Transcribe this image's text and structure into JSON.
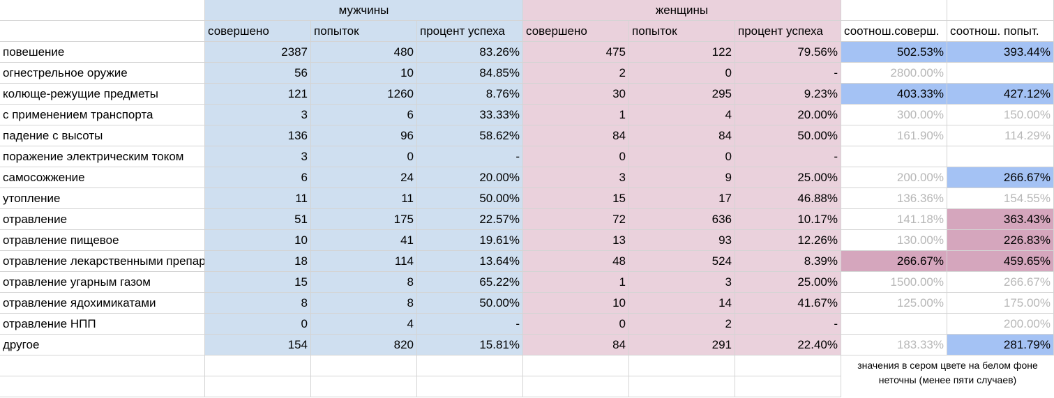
{
  "header_groups": {
    "men": "мужчины",
    "women": "женщины"
  },
  "subheaders": [
    "совершено",
    "попыток",
    "процент успеха",
    "совершено",
    "попыток",
    "процент успеха",
    "соотнош.соверш.",
    "соотнош. попыт."
  ],
  "rows": [
    {
      "label": "повешение",
      "m": [
        "2387",
        "480",
        "83.26%"
      ],
      "w": [
        "475",
        "122",
        "79.56%"
      ],
      "r1": "502.53%",
      "r2": "393.44%",
      "r1s": "blue",
      "r2s": "blue"
    },
    {
      "label": "огнестрельное оружие",
      "m": [
        "56",
        "10",
        "84.85%"
      ],
      "w": [
        "2",
        "0",
        "-"
      ],
      "r1": "2800.00%",
      "r2": "",
      "r1s": "gray",
      "r2s": ""
    },
    {
      "label": "колюще-режущие предметы",
      "m": [
        "121",
        "1260",
        "8.76%"
      ],
      "w": [
        "30",
        "295",
        "9.23%"
      ],
      "r1": "403.33%",
      "r2": "427.12%",
      "r1s": "blue",
      "r2s": "blue"
    },
    {
      "label": "с применением транспорта",
      "m": [
        "3",
        "6",
        "33.33%"
      ],
      "w": [
        "1",
        "4",
        "20.00%"
      ],
      "r1": "300.00%",
      "r2": "150.00%",
      "r1s": "gray",
      "r2s": "gray"
    },
    {
      "label": "падение с высоты",
      "m": [
        "136",
        "96",
        "58.62%"
      ],
      "w": [
        "84",
        "84",
        "50.00%"
      ],
      "r1": "161.90%",
      "r2": "114.29%",
      "r1s": "gray",
      "r2s": "gray"
    },
    {
      "label": "поражение электрическим током",
      "m": [
        "3",
        "0",
        "-"
      ],
      "w": [
        "0",
        "0",
        "-"
      ],
      "r1": "",
      "r2": "",
      "r1s": "",
      "r2s": ""
    },
    {
      "label": "самосожжение",
      "m": [
        "6",
        "24",
        "20.00%"
      ],
      "w": [
        "3",
        "9",
        "25.00%"
      ],
      "r1": "200.00%",
      "r2": "266.67%",
      "r1s": "gray",
      "r2s": "blue"
    },
    {
      "label": "утопление",
      "m": [
        "11",
        "11",
        "50.00%"
      ],
      "w": [
        "15",
        "17",
        "46.88%"
      ],
      "r1": "136.36%",
      "r2": "154.55%",
      "r1s": "gray",
      "r2s": "gray"
    },
    {
      "label": "отравление",
      "m": [
        "51",
        "175",
        "22.57%"
      ],
      "w": [
        "72",
        "636",
        "10.17%"
      ],
      "r1": "141.18%",
      "r2": "363.43%",
      "r1s": "gray",
      "r2s": "pink"
    },
    {
      "label": "отравление пищевое",
      "m": [
        "10",
        "41",
        "19.61%"
      ],
      "w": [
        "13",
        "93",
        "12.26%"
      ],
      "r1": "130.00%",
      "r2": "226.83%",
      "r1s": "gray",
      "r2s": "pink"
    },
    {
      "label": "отравление лекарственными препаратами",
      "m": [
        "18",
        "114",
        "13.64%"
      ],
      "w": [
        "48",
        "524",
        "8.39%"
      ],
      "r1": "266.67%",
      "r2": "459.65%",
      "r1s": "pink",
      "r2s": "pink"
    },
    {
      "label": "отравление угарным газом",
      "m": [
        "15",
        "8",
        "65.22%"
      ],
      "w": [
        "1",
        "3",
        "25.00%"
      ],
      "r1": "1500.00%",
      "r2": "266.67%",
      "r1s": "gray",
      "r2s": "gray"
    },
    {
      "label": "отравление ядохимикатами",
      "m": [
        "8",
        "8",
        "50.00%"
      ],
      "w": [
        "10",
        "14",
        "41.67%"
      ],
      "r1": "125.00%",
      "r2": "175.00%",
      "r1s": "gray",
      "r2s": "gray"
    },
    {
      "label": "отравление НПП",
      "m": [
        "0",
        "4",
        "-"
      ],
      "w": [
        "0",
        "2",
        "-"
      ],
      "r1": "",
      "r2": "200.00%",
      "r1s": "",
      "r2s": "gray"
    },
    {
      "label": "другое",
      "m": [
        "154",
        "820",
        "15.81%"
      ],
      "w": [
        "84",
        "291",
        "22.40%"
      ],
      "r1": "183.33%",
      "r2": "281.79%",
      "r1s": "gray",
      "r2s": "blue"
    }
  ],
  "note": "значения в сером цвете на белом фоне неточны (менее пяти случаев)",
  "colors": {
    "men": "#cfdff0",
    "women": "#ead1dc",
    "blue": "#a4c2f4",
    "pink": "#d5a6bd",
    "gray_text": "#b7b7b7"
  }
}
